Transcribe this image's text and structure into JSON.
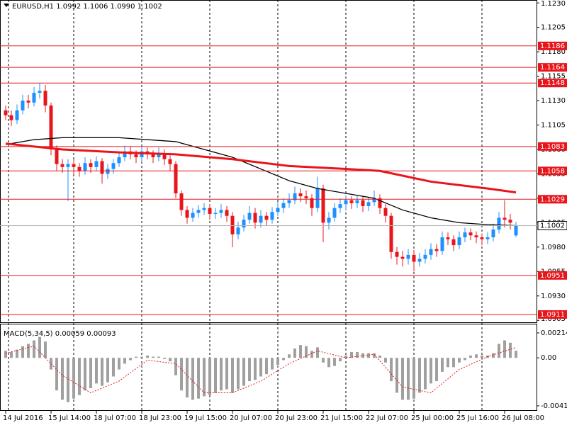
{
  "chart_data": [
    {
      "type": "candlestick",
      "title": "EURUSD,H1  1.0992 1.1006 1.0990 1.1002",
      "categories": [
        "14 Jul 2016",
        null,
        null,
        null,
        null,
        null,
        null,
        null,
        "15 Jul 14:00",
        null,
        null,
        null,
        null,
        null,
        null,
        null,
        "18 Jul 07:00",
        null,
        null,
        null,
        null,
        null,
        null,
        null,
        "18 Jul 23:00",
        null,
        null,
        null,
        null,
        null,
        null,
        null,
        "19 Jul 15:00",
        null,
        null,
        null,
        null,
        null,
        null,
        null,
        "20 Jul 07:00",
        null,
        null,
        null,
        null,
        null,
        null,
        null,
        "20 Jul 23:00",
        null,
        null,
        null,
        null,
        null,
        null,
        null,
        "21 Jul 15:00",
        null,
        null,
        null,
        null,
        null,
        null,
        null,
        "22 Jul 07:00",
        null,
        null,
        null,
        null,
        null,
        null,
        null,
        "25 Jul 00:00",
        null,
        null,
        null,
        null,
        null,
        null,
        null,
        "25 Jul 16:00",
        null,
        null,
        null,
        null,
        null,
        null,
        null,
        "26 Jul 08:00",
        null,
        null
      ],
      "open": [
        1.112,
        1.1115,
        1.111,
        1.112,
        1.113,
        1.1128,
        1.1138,
        1.114,
        1.1125,
        1.108,
        1.1065,
        1.1062,
        1.1065,
        1.1062,
        1.1058,
        1.1066,
        1.1062,
        1.1068,
        1.1055,
        1.106,
        1.1066,
        1.1072,
        1.1078,
        1.1075,
        1.1072,
        1.1078,
        1.1075,
        1.1072,
        1.1076,
        1.107,
        1.1065,
        1.1035,
        1.1018,
        1.101,
        1.1015,
        1.1018,
        1.102,
        1.1014,
        1.1015,
        1.1018,
        1.1012,
        1.0993,
        1.1,
        1.1008,
        1.1015,
        1.1005,
        1.1012,
        1.1008,
        1.1016,
        1.102,
        1.1025,
        1.1028,
        1.1035,
        1.1032,
        1.103,
        1.102,
        1.104,
        1.1005,
        1.101,
        1.102,
        1.1024,
        1.1028,
        1.1025,
        1.1028,
        1.1022,
        1.1026,
        1.103,
        1.102,
        1.1012,
        1.0975,
        1.097,
        1.0968,
        1.0972,
        1.0965,
        1.0968,
        1.0972,
        1.0978,
        1.0976,
        1.099,
        1.0988,
        1.0982,
        1.099,
        1.0995,
        1.0992,
        1.099,
        1.0988,
        1.099,
        1.0998,
        1.101,
        1.1008,
        1.0992
      ],
      "high": [
        1.1125,
        1.112,
        1.1126,
        1.1136,
        1.1136,
        1.1144,
        1.1148,
        1.1146,
        1.1128,
        1.1084,
        1.107,
        1.107,
        1.107,
        1.1066,
        1.1072,
        1.107,
        1.1073,
        1.1071,
        1.1065,
        1.107,
        1.1078,
        1.1084,
        1.1083,
        1.1079,
        1.1083,
        1.1082,
        1.1079,
        1.1082,
        1.108,
        1.1074,
        1.1068,
        1.1038,
        1.1022,
        1.102,
        1.1023,
        1.1025,
        1.1024,
        1.102,
        1.1024,
        1.1022,
        1.1016,
        1.1006,
        1.1013,
        1.1022,
        1.102,
        1.1018,
        1.1016,
        1.1021,
        1.1026,
        1.103,
        1.1035,
        1.1042,
        1.104,
        1.1038,
        1.1034,
        1.1052,
        1.1044,
        1.1016,
        1.1025,
        1.103,
        1.1033,
        1.1032,
        1.1033,
        1.1032,
        1.1031,
        1.1038,
        1.1034,
        1.1024,
        1.1015,
        1.098,
        1.0976,
        1.0978,
        1.0977,
        1.0974,
        1.0978,
        1.0984,
        1.0983,
        1.0996,
        1.0995,
        1.0992,
        1.0996,
        1.1,
        1.0999,
        1.0996,
        1.0994,
        1.0995,
        1.1004,
        1.1016,
        1.1028,
        1.1014,
        1.1006
      ],
      "low": [
        1.111,
        1.1104,
        1.1106,
        1.1116,
        1.1122,
        1.1124,
        1.1132,
        1.1118,
        1.1074,
        1.1058,
        1.1056,
        1.1027,
        1.1055,
        1.1052,
        1.1054,
        1.1056,
        1.1058,
        1.1045,
        1.105,
        1.1055,
        1.1062,
        1.1068,
        1.107,
        1.1066,
        1.1068,
        1.107,
        1.1066,
        1.1068,
        1.1064,
        1.1058,
        1.103,
        1.1012,
        1.1004,
        1.1006,
        1.101,
        1.1013,
        1.1008,
        1.1009,
        1.101,
        1.1006,
        1.098,
        1.0988,
        1.0996,
        1.1004,
        1.0999,
        1.1,
        1.1002,
        1.1004,
        1.1012,
        1.1015,
        1.102,
        1.1024,
        1.1026,
        1.1024,
        1.1012,
        1.1016,
        1.0985,
        1.0998,
        1.1006,
        1.1015,
        1.1018,
        1.1019,
        1.102,
        1.1016,
        1.1017,
        1.1022,
        1.1014,
        1.1005,
        1.0968,
        1.0962,
        1.096,
        1.0962,
        1.0955,
        1.096,
        1.0963,
        1.0967,
        1.097,
        1.0972,
        1.0982,
        1.0976,
        1.0978,
        1.0985,
        1.0987,
        1.0984,
        1.0982,
        1.0983,
        1.0986,
        1.0994,
        1.1,
        1.0998,
        1.099
      ],
      "close": [
        1.1115,
        1.111,
        1.112,
        1.113,
        1.1128,
        1.1138,
        1.114,
        1.1125,
        1.108,
        1.1065,
        1.1062,
        1.1065,
        1.1062,
        1.1058,
        1.1066,
        1.1062,
        1.1068,
        1.1055,
        1.106,
        1.1066,
        1.1072,
        1.1078,
        1.1075,
        1.1072,
        1.1078,
        1.1075,
        1.1072,
        1.1076,
        1.107,
        1.1065,
        1.1035,
        1.1018,
        1.101,
        1.1015,
        1.1018,
        1.102,
        1.1014,
        1.1015,
        1.1018,
        1.1012,
        1.0993,
        1.1,
        1.1008,
        1.1015,
        1.1005,
        1.1012,
        1.1008,
        1.1016,
        1.102,
        1.1025,
        1.1028,
        1.1035,
        1.1032,
        1.103,
        1.102,
        1.104,
        1.1005,
        1.101,
        1.102,
        1.1024,
        1.1028,
        1.1025,
        1.1028,
        1.1022,
        1.1026,
        1.103,
        1.102,
        1.1012,
        1.0975,
        1.097,
        1.0968,
        1.0972,
        1.0965,
        1.0968,
        1.0972,
        1.0978,
        1.0976,
        1.099,
        1.0988,
        1.0982,
        1.099,
        1.0995,
        1.0992,
        1.099,
        1.0988,
        1.099,
        1.0998,
        1.101,
        1.1008,
        1.1005,
        1.1002
      ],
      "up_color": "#1e90ff",
      "down_color": "#e8151b",
      "series": [
        {
          "color": "#000000",
          "x": [
            0,
            5,
            10,
            20,
            30,
            40,
            50,
            55,
            60,
            65,
            70,
            75,
            80,
            85,
            90
          ],
          "values": [
            1.1085,
            1.109,
            1.1092,
            1.1092,
            1.1088,
            1.1072,
            1.1048,
            1.104,
            1.1035,
            1.103,
            1.1018,
            1.101,
            1.1005,
            1.1003,
            1.1002
          ]
        },
        {
          "color": "#e8151b",
          "x": [
            0,
            10,
            20,
            30,
            40,
            50,
            60,
            66,
            75,
            85,
            90
          ],
          "values": [
            1.1086,
            1.108,
            1.1077,
            1.1075,
            1.107,
            1.1063,
            1.106,
            1.1058,
            1.1047,
            1.104,
            1.1036
          ]
        }
      ],
      "hlines": [
        1.1186,
        1.1164,
        1.1148,
        1.1083,
        1.1058,
        1.1029,
        1.0951,
        1.0911
      ],
      "hline_color": "#e8151b",
      "last_price": 1.1002,
      "ylim": [
        1.0903,
        1.1233
      ],
      "yticks": [
        {
          "value": 1.123,
          "label": "1.1230"
        },
        1.1205,
        {
          "value": 1.118,
          "label": "1.1180"
        },
        1.1155,
        {
          "value": 1.113,
          "label": "1.1130"
        },
        1.1105,
        {
          "value": 1.108,
          "label": "1.1080"
        },
        1.1055,
        {
          "value": 1.103,
          "label": "1.1030"
        },
        1.1005,
        {
          "value": 1.098,
          "label": "1.0980"
        },
        1.0955,
        {
          "value": 1.093,
          "label": "1.0930"
        },
        1.0905
      ]
    },
    {
      "type": "macd",
      "title": "MACD(5,34,5) 0.00059 0.00093",
      "values": [
        0.0006,
        0.0005,
        0.0007,
        0.001,
        0.0012,
        0.0015,
        0.0018,
        0.0014,
        -0.001,
        -0.0028,
        -0.0036,
        -0.0038,
        -0.0035,
        -0.0032,
        -0.0028,
        -0.0026,
        -0.0022,
        -0.0024,
        -0.0021,
        -0.0016,
        -0.001,
        -0.0005,
        -0.0002,
        0.0001,
        0.0001,
        0.0002,
        0.0001,
        0.0001,
        -0.0001,
        -0.0003,
        -0.0015,
        -0.0028,
        -0.0034,
        -0.0036,
        -0.0035,
        -0.0033,
        -0.0032,
        -0.003,
        -0.0028,
        -0.0027,
        -0.003,
        -0.0027,
        -0.0024,
        -0.002,
        -0.0019,
        -0.0016,
        -0.0014,
        -0.001,
        -0.0006,
        -0.0002,
        0.0003,
        0.0008,
        0.0011,
        0.001,
        0.0006,
        0.0009,
        -0.0004,
        -0.0008,
        -0.0007,
        -0.0003,
        0.0002,
        0.0005,
        0.0005,
        0.0004,
        0.0004,
        0.0004,
        0.0002,
        -0.0004,
        -0.002,
        -0.003,
        -0.0036,
        -0.0036,
        -0.0035,
        -0.003,
        -0.0027,
        -0.0022,
        -0.002,
        -0.0012,
        -0.0008,
        -0.0008,
        -0.0004,
        -0.0002,
        0.0002,
        0.0003,
        0.0002,
        0.0002,
        0.0004,
        0.0012,
        0.0015,
        0.0013,
        0.0006
      ],
      "color": "#a0a0a0",
      "signal": {
        "color": "#e8151b",
        "x": [
          0,
          5,
          10,
          15,
          20,
          25,
          30,
          35,
          40,
          45,
          50,
          55,
          60,
          65,
          70,
          75,
          80,
          85,
          90
        ],
        "values": [
          0.0004,
          0.001,
          -0.0015,
          -0.003,
          -0.002,
          -0.0002,
          -0.0005,
          -0.003,
          -0.003,
          -0.002,
          -0.0005,
          0.0006,
          0.0,
          0.0003,
          -0.0025,
          -0.003,
          -0.001,
          0.0001,
          0.0009
        ]
      },
      "ylim": [
        -0.00455,
        0.00287
      ],
      "yticks": [
        0.00214,
        {
          "value": 0,
          "label": "0.00"
        },
        -0.00412
      ]
    }
  ]
}
